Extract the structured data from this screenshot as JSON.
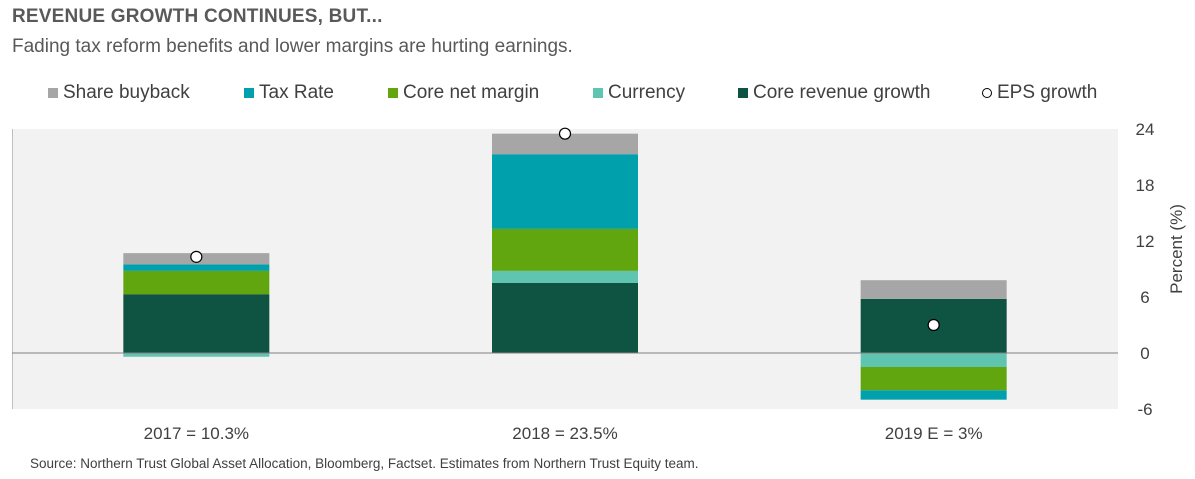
{
  "header": {
    "title": "REVENUE GROWTH CONTINUES, BUT...",
    "subtitle": "Fading tax reform benefits and lower margins are hurting earnings."
  },
  "footer": {
    "source": "Source: Northern Trust Global Asset Allocation, Bloomberg, Factset. Estimates from Northern Trust Equity team."
  },
  "chart_data": {
    "type": "bar",
    "stacked": true,
    "categories": [
      "2017 = 10.3%",
      "2018 = 23.5%",
      "2019 E = 3%"
    ],
    "ylabel": "Percent (%)",
    "ylim": [
      -6,
      24
    ],
    "yticks": [
      -6,
      0,
      6,
      12,
      18,
      24
    ],
    "legend_position": "top",
    "grid": false,
    "series": [
      {
        "name": "Core revenue growth",
        "color": "#0f5443",
        "values": [
          6.3,
          7.5,
          5.8
        ]
      },
      {
        "name": "Currency",
        "color": "#5fc4b0",
        "values": [
          -0.4,
          1.3,
          -1.5
        ]
      },
      {
        "name": "Core net margin",
        "color": "#62a60f",
        "values": [
          2.5,
          4.5,
          -2.5
        ]
      },
      {
        "name": "Tax Rate",
        "color": "#00a0ac",
        "values": [
          0.7,
          8.0,
          -1.0
        ]
      },
      {
        "name": "Share buyback",
        "color": "#a6a6a6",
        "values": [
          1.2,
          2.2,
          2.0
        ]
      }
    ],
    "legend_order": [
      "Share buyback",
      "Tax Rate",
      "Core net margin",
      "Currency",
      "Core revenue growth",
      "EPS growth"
    ],
    "eps_growth": {
      "name": "EPS growth",
      "values": [
        10.3,
        23.5,
        3.0
      ]
    }
  }
}
